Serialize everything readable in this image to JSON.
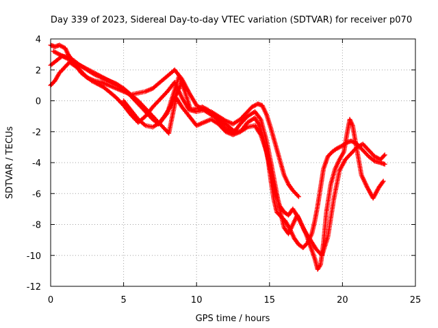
{
  "chart_data": {
    "type": "scatter",
    "title": "Day 339 of 2023, Sidereal Day-to-day VTEC variation (SDTVAR) for receiver p070",
    "xlabel": "GPS time / hours",
    "ylabel": "SDTVAR / TECUs",
    "xlim": [
      0,
      25
    ],
    "ylim": [
      -12,
      4
    ],
    "xticks": [
      0,
      5,
      10,
      15,
      20,
      25
    ],
    "yticks": [
      -12,
      -10,
      -8,
      -6,
      -4,
      -2,
      0,
      2,
      4
    ],
    "grid": true,
    "marker": "+",
    "color": "#ff0000",
    "series": [
      {
        "x": [
          0.0,
          0.3,
          0.6,
          1.0,
          1.2,
          1.5,
          1.8,
          2.1,
          2.5,
          3.0,
          3.5,
          4.0,
          4.5,
          5.0,
          5.5,
          6.0,
          6.5,
          7.0,
          7.5,
          8.0,
          8.5,
          9.0,
          9.5,
          10.0,
          10.5,
          11.0,
          11.5,
          12.0,
          12.5,
          13.0,
          13.5,
          14.0,
          14.3,
          14.6,
          14.9,
          15.1,
          15.3,
          15.5,
          15.8,
          16.1,
          16.4,
          16.7,
          17.0,
          17.3,
          17.6,
          17.9,
          18.1,
          18.3,
          18.5,
          18.7,
          19.0,
          19.3,
          19.6,
          20.0,
          20.3,
          20.6,
          21.0,
          21.4,
          21.8,
          22.2,
          22.6,
          22.9
        ],
        "y": [
          3.6,
          3.5,
          3.6,
          3.4,
          3.0,
          2.6,
          2.2,
          1.8,
          1.5,
          1.3,
          1.2,
          1.0,
          0.8,
          0.6,
          0.4,
          0.5,
          0.6,
          0.8,
          1.2,
          1.6,
          2.0,
          1.4,
          0.5,
          -0.3,
          -0.6,
          -0.9,
          -1.2,
          -1.5,
          -1.9,
          -2.0,
          -1.4,
          -1.1,
          -1.6,
          -2.5,
          -3.8,
          -5.2,
          -6.4,
          -7.2,
          -7.5,
          -7.8,
          -8.3,
          -8.9,
          -9.3,
          -9.5,
          -9.2,
          -8.6,
          -7.8,
          -6.8,
          -5.6,
          -4.4,
          -3.6,
          -3.3,
          -3.1,
          -2.9,
          -2.7,
          -2.6,
          -2.8,
          -3.2,
          -3.6,
          -3.9,
          -4.0,
          -4.1
        ]
      },
      {
        "x": [
          0.0,
          0.3,
          0.6,
          1.0,
          1.3,
          1.6,
          2.0,
          2.4,
          2.8,
          3.2,
          3.6,
          4.0,
          4.5,
          5.0,
          5.5,
          6.0,
          6.5,
          7.0,
          7.5,
          8.0,
          8.5,
          9.0,
          9.5,
          10.0,
          10.4,
          10.8,
          11.2,
          11.6,
          12.0,
          12.5,
          13.0,
          13.5,
          14.0,
          14.4,
          14.8,
          15.1,
          15.4,
          15.7,
          16.0,
          16.3,
          16.6,
          16.9,
          17.2,
          17.5,
          17.8,
          18.1,
          18.3,
          18.5,
          18.7,
          18.9,
          19.2,
          19.5,
          19.8,
          20.1,
          20.3,
          20.5,
          20.7,
          20.9,
          21.3,
          21.7,
          22.1,
          22.5,
          22.8
        ],
        "y": [
          1.0,
          1.3,
          1.8,
          2.2,
          2.5,
          2.3,
          2.0,
          1.6,
          1.3,
          1.1,
          0.9,
          0.6,
          0.2,
          -0.3,
          -0.9,
          -1.4,
          -1.0,
          -0.4,
          0.1,
          0.6,
          1.2,
          0.2,
          -0.6,
          -0.5,
          -0.4,
          -0.6,
          -1.0,
          -1.4,
          -1.8,
          -2.1,
          -1.5,
          -1.0,
          -0.7,
          -1.2,
          -2.6,
          -4.0,
          -5.5,
          -7.0,
          -8.2,
          -8.6,
          -8.0,
          -7.4,
          -8.0,
          -8.6,
          -9.4,
          -10.2,
          -10.9,
          -10.6,
          -9.2,
          -7.2,
          -5.4,
          -4.4,
          -3.8,
          -3.3,
          -2.2,
          -1.2,
          -1.6,
          -2.7,
          -4.8,
          -5.6,
          -6.3,
          -5.6,
          -5.2
        ]
      },
      {
        "x": [
          0.0,
          0.4,
          0.8,
          1.2,
          1.6,
          2.0,
          2.5,
          3.0,
          3.5,
          4.0,
          4.5,
          5.0,
          5.5,
          6.0,
          6.5,
          7.0,
          7.4,
          7.8,
          8.1,
          8.6,
          9.0,
          9.5,
          10.0,
          10.5,
          11.0,
          11.5,
          12.0,
          12.5,
          13.0,
          13.5,
          14.0,
          14.4,
          14.8,
          15.1,
          15.4,
          15.7,
          16.0,
          16.3,
          16.6,
          17.0,
          17.4,
          17.8,
          18.2,
          18.6,
          19.0,
          19.4,
          19.8,
          20.2,
          20.6,
          21.0,
          21.4,
          21.8,
          22.2,
          22.6,
          22.9
        ],
        "y": [
          2.3,
          2.6,
          2.9,
          2.8,
          2.6,
          2.3,
          2.0,
          1.7,
          1.5,
          1.3,
          1.1,
          0.8,
          0.4,
          0.0,
          -0.5,
          -1.0,
          -1.4,
          -1.8,
          -2.1,
          0.2,
          -0.4,
          -1.0,
          -1.6,
          -1.4,
          -1.2,
          -1.5,
          -2.0,
          -2.2,
          -2.0,
          -1.7,
          -1.6,
          -2.2,
          -3.3,
          -4.6,
          -5.9,
          -6.8,
          -7.2,
          -7.4,
          -7.0,
          -7.6,
          -8.4,
          -9.0,
          -9.6,
          -10.0,
          -8.8,
          -6.4,
          -4.5,
          -3.8,
          -3.4,
          -3.0,
          -2.8,
          -3.2,
          -3.6,
          -3.8,
          -3.5
        ]
      },
      {
        "x": [
          5.0,
          5.5,
          6.0,
          6.5,
          7.0,
          7.5,
          8.0,
          8.4,
          8.8,
          9.2,
          9.6,
          10.0,
          10.5,
          11.0,
          11.5,
          12.0,
          12.5,
          13.0,
          13.4,
          13.8,
          14.2,
          14.5,
          14.8,
          15.1,
          15.4,
          15.7,
          16.0,
          16.3,
          16.6,
          17.0
        ],
        "y": [
          0.0,
          -0.6,
          -1.2,
          -1.6,
          -1.7,
          -1.4,
          -0.8,
          0.4,
          1.6,
          0.6,
          -0.6,
          -0.7,
          -0.6,
          -0.7,
          -1.0,
          -1.3,
          -1.5,
          -1.2,
          -0.8,
          -0.4,
          -0.2,
          -0.3,
          -0.9,
          -1.8,
          -2.8,
          -3.8,
          -4.8,
          -5.4,
          -5.8,
          -6.2
        ]
      },
      {
        "x": [
          0.2,
          0.6,
          1.0,
          1.4,
          1.8,
          2.2,
          2.6,
          3.0,
          3.4,
          3.8,
          4.2,
          4.6,
          5.0,
          5.4,
          5.8,
          6.2,
          6.6,
          7.0,
          7.4,
          7.8,
          8.2,
          8.6,
          9.0
        ],
        "y": [
          3.2,
          3.0,
          2.8,
          2.6,
          2.4,
          2.2,
          2.0,
          1.8,
          1.6,
          1.4,
          1.2,
          1.0,
          0.7,
          0.4,
          0.0,
          -0.4,
          -0.8,
          -1.2,
          -1.5,
          -1.0,
          -0.4,
          0.4,
          1.2
        ]
      }
    ]
  }
}
